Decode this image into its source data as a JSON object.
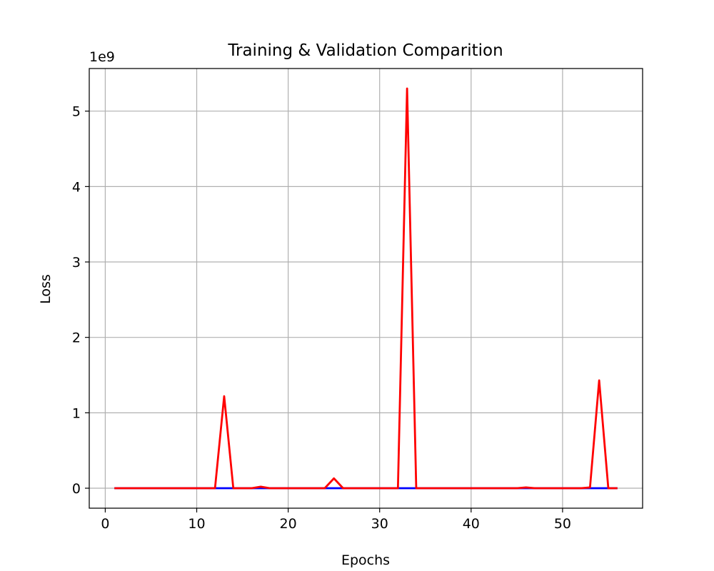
{
  "chart_data": {
    "type": "line",
    "title": "Training & Validation Comparition",
    "xlabel": "Epochs",
    "ylabel": "Loss",
    "y_offset_label": "1e9",
    "grid": true,
    "xlim": [
      -1.75,
      58.75
    ],
    "ylim": [
      -0.265,
      5.565
    ],
    "x_ticks": [
      0,
      10,
      20,
      30,
      40,
      50
    ],
    "y_ticks": [
      0,
      1,
      2,
      3,
      4,
      5
    ],
    "x_tick_labels": [
      "0",
      "10",
      "20",
      "30",
      "40",
      "50"
    ],
    "y_tick_labels": [
      "0",
      "1",
      "2",
      "3",
      "4",
      "5"
    ],
    "x": [
      1,
      2,
      3,
      4,
      5,
      6,
      7,
      8,
      9,
      10,
      11,
      12,
      13,
      14,
      15,
      16,
      17,
      18,
      19,
      20,
      21,
      22,
      23,
      24,
      25,
      26,
      27,
      28,
      29,
      30,
      31,
      32,
      33,
      34,
      35,
      36,
      37,
      38,
      39,
      40,
      41,
      42,
      43,
      44,
      45,
      46,
      47,
      48,
      49,
      50,
      51,
      52,
      53,
      54,
      55,
      56
    ],
    "series": [
      {
        "color": "#0000ff",
        "values": [
          0,
          0,
          0,
          0,
          0,
          0,
          0,
          0,
          0,
          0,
          0,
          0,
          0,
          0,
          0,
          0,
          0,
          0,
          0,
          0,
          0,
          0,
          0,
          0,
          0,
          0,
          0,
          0,
          0,
          0,
          0,
          0,
          0,
          0,
          0,
          0,
          0,
          0,
          0,
          0,
          0,
          0,
          0,
          0,
          0,
          0,
          0,
          0,
          0,
          0,
          0,
          0,
          0,
          0,
          0,
          0
        ]
      },
      {
        "color": "#ff0000",
        "values": [
          0,
          0,
          0,
          0,
          0,
          0,
          0,
          0,
          0,
          0,
          0,
          0,
          1.22,
          0,
          0,
          0,
          0.02,
          0,
          0,
          0,
          0,
          0,
          0,
          0,
          0.13,
          0,
          0,
          0,
          0,
          0,
          0,
          0,
          5.3,
          0,
          0,
          0,
          0,
          0,
          0,
          0,
          0,
          0,
          0,
          0,
          0,
          0.01,
          0,
          0,
          0,
          0,
          0,
          0,
          0.01,
          1.43,
          0,
          0
        ]
      }
    ]
  }
}
